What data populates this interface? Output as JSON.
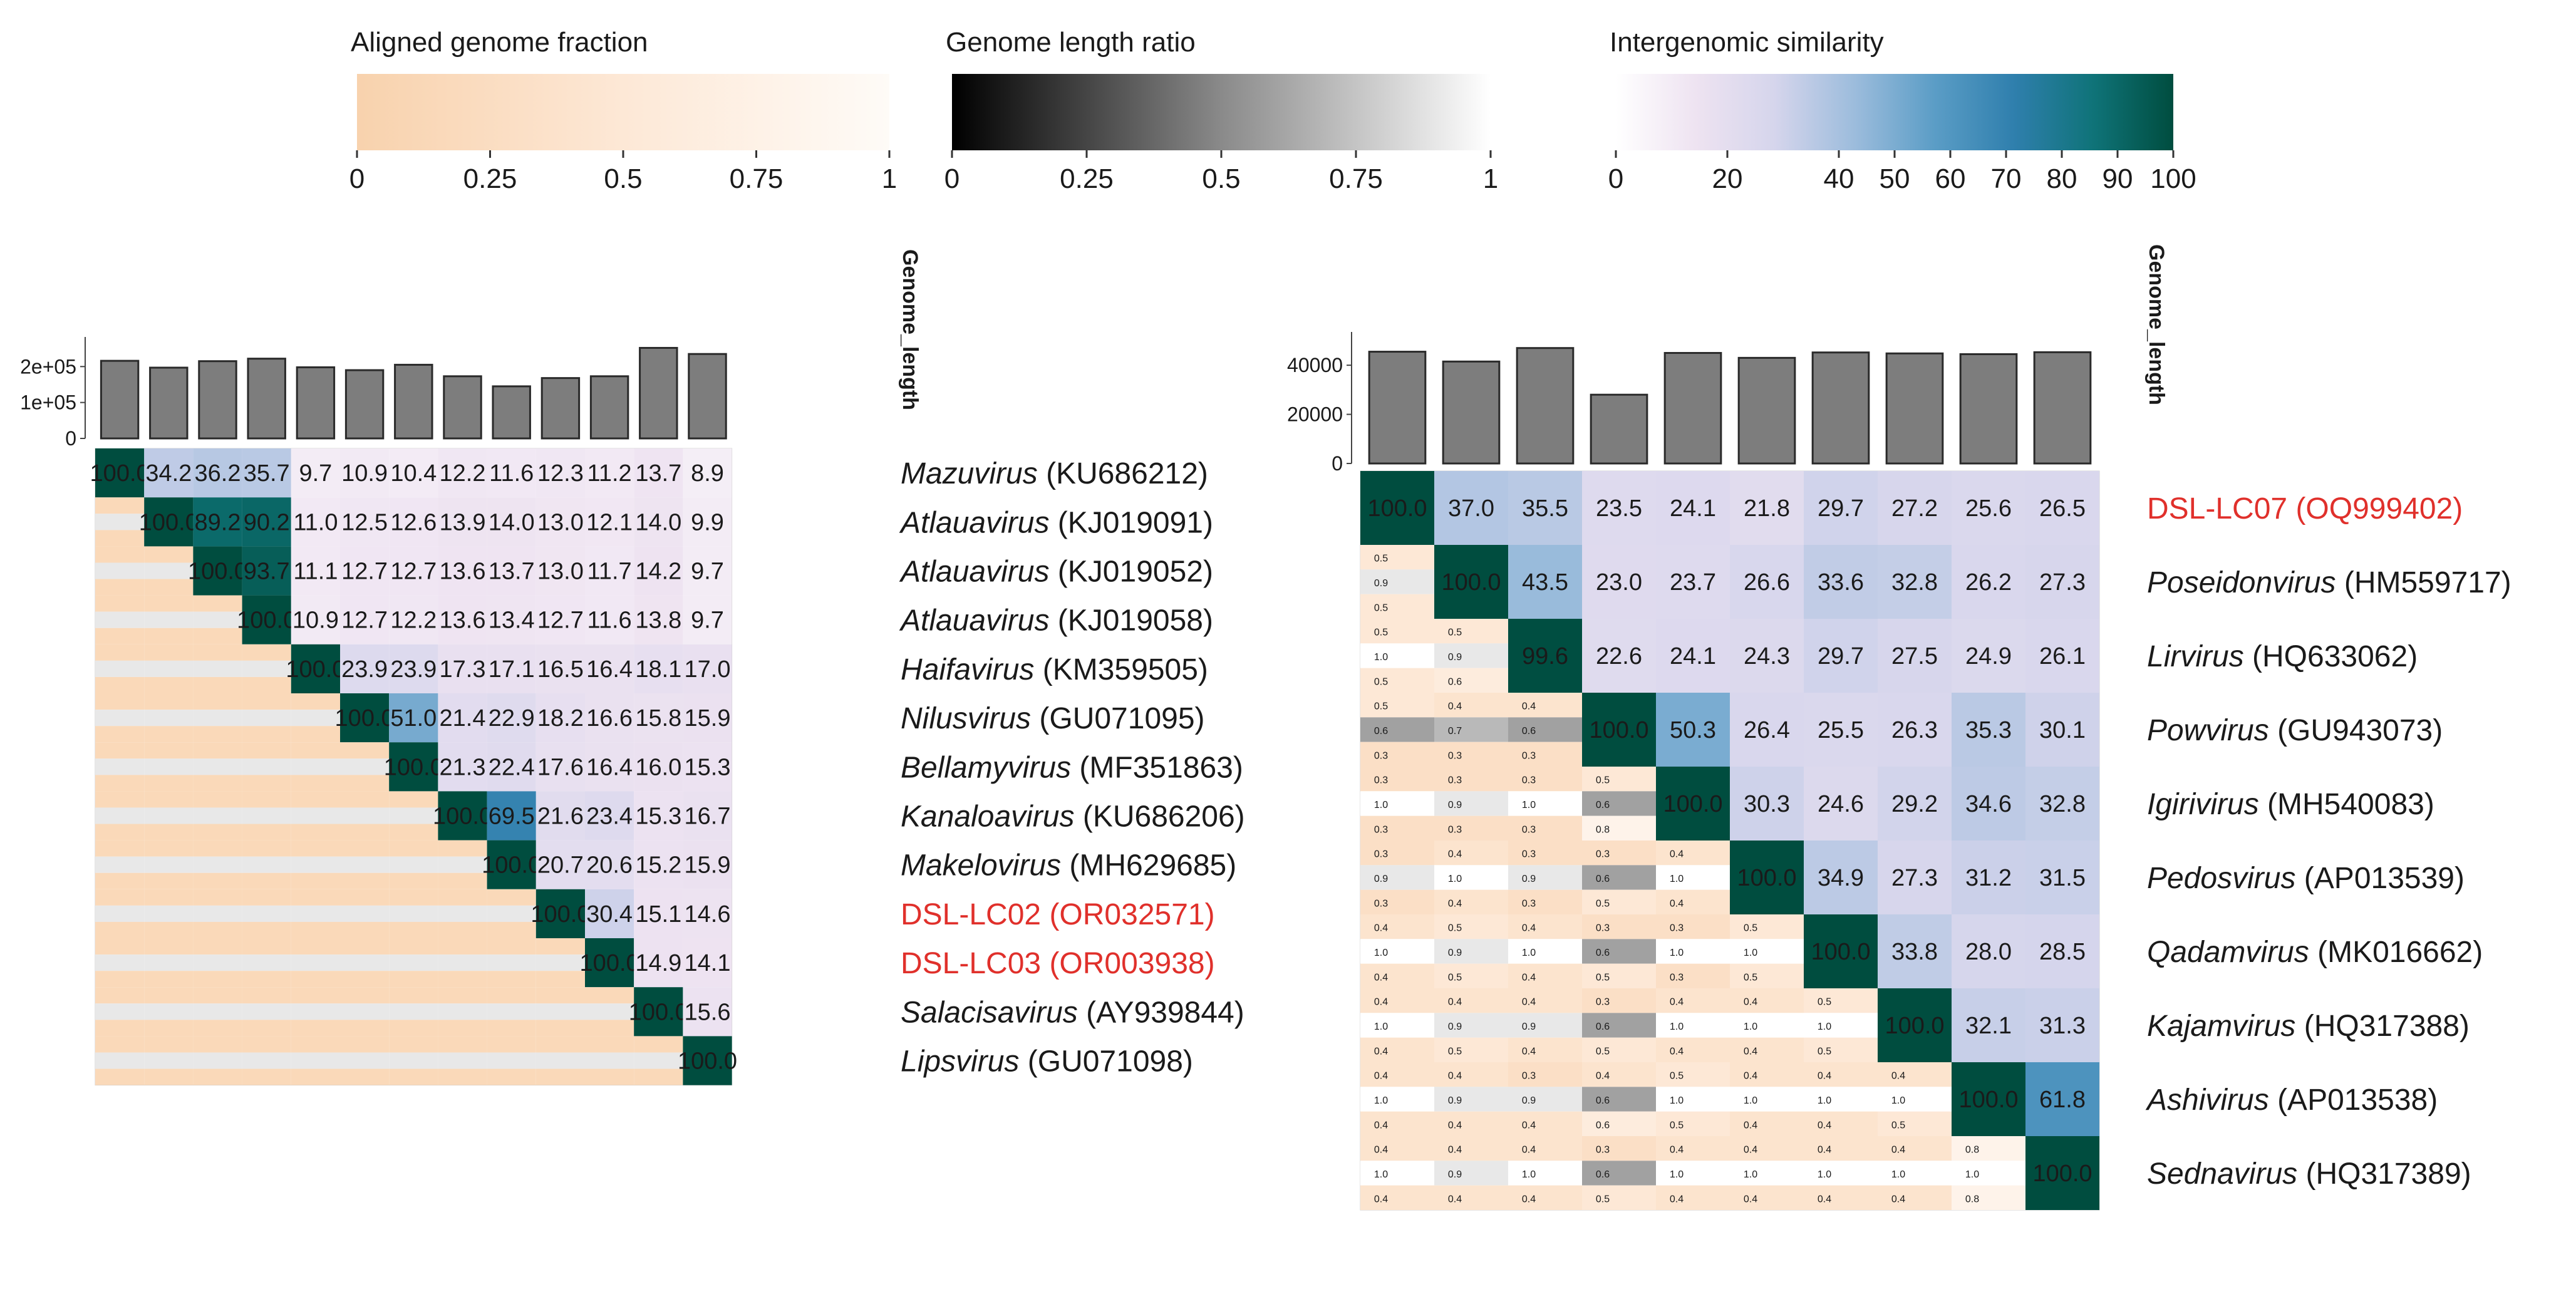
{
  "legends": [
    {
      "title": "Aligned genome fraction",
      "ticks": [
        "0",
        "0.25",
        "0.5",
        "0.75",
        "1"
      ],
      "tick_values": [
        0,
        0.25,
        0.5,
        0.75,
        1
      ],
      "colors": [
        "#f8d2ad",
        "#fde8d6",
        "#fefbf7"
      ]
    },
    {
      "title": "Genome length ratio",
      "ticks": [
        "0",
        "0.25",
        "0.5",
        "0.75",
        "1"
      ],
      "tick_values": [
        0,
        0.25,
        0.5,
        0.75,
        1
      ],
      "colors": [
        "#000000",
        "#8a8a8a",
        "#ffffff"
      ]
    },
    {
      "title": "Intergenomic similarity",
      "ticks": [
        "0",
        "20",
        "40",
        "50",
        "60",
        "70",
        "80",
        "90",
        "100"
      ],
      "tick_values": [
        0,
        20,
        40,
        50,
        60,
        70,
        80,
        90,
        100
      ],
      "colors": [
        "#ffffff",
        "#eee3f1",
        "#d5d5ec",
        "#9cbcdc",
        "#5b9dc6",
        "#2f7fad",
        "#0f7378",
        "#004d3f"
      ]
    }
  ],
  "panels": [
    {
      "axis_title": "Genome_length",
      "bar_axis": {
        "ticks": [
          "0",
          "1e+05",
          "2e+05"
        ],
        "tick_values": [
          0,
          100000,
          200000
        ],
        "max": 265000
      },
      "genomes": [
        {
          "genus": "Mazuvirus",
          "accession": "(KU686212)",
          "highlight": false,
          "length": 216000
        },
        {
          "genus": "Atlauavirus",
          "accession": "(KJ019091)",
          "highlight": false,
          "length": 197000
        },
        {
          "genus": "Atlauavirus",
          "accession": "(KJ019052)",
          "highlight": false,
          "length": 215000
        },
        {
          "genus": "Atlauavirus",
          "accession": "(KJ019058)",
          "highlight": false,
          "length": 222000
        },
        {
          "genus": "Haifavirus",
          "accession": "(KM359505)",
          "highlight": false,
          "length": 198000
        },
        {
          "genus": "Nilusvirus",
          "accession": "(GU071095)",
          "highlight": false,
          "length": 190000
        },
        {
          "genus": "Bellamyvirus",
          "accession": "(MF351863)",
          "highlight": false,
          "length": 205000
        },
        {
          "genus": "Kanaloavirus",
          "accession": "(KU686206)",
          "highlight": false,
          "length": 173000
        },
        {
          "genus": "Makelovirus",
          "accession": "(MH629685)",
          "highlight": false,
          "length": 145000
        },
        {
          "genus": "",
          "accession": "DSL-LC02 (OR032571)",
          "highlight": true,
          "length": 168000
        },
        {
          "genus": "",
          "accession": "DSL-LC03 (OR003938)",
          "highlight": true,
          "length": 173000
        },
        {
          "genus": "Salacisavirus",
          "accession": "(AY939844)",
          "highlight": false,
          "length": 252000
        },
        {
          "genus": "Lipsvirus",
          "accession": "(GU071098)",
          "highlight": false,
          "length": 235000
        }
      ],
      "similarity": [
        [
          100.0,
          34.2,
          36.2,
          35.7,
          9.7,
          10.9,
          10.4,
          12.2,
          11.6,
          12.3,
          11.2,
          13.7,
          8.9
        ],
        [
          null,
          100.0,
          89.2,
          90.2,
          11.0,
          12.5,
          12.6,
          13.9,
          14.0,
          13.0,
          12.1,
          14.0,
          9.9
        ],
        [
          null,
          null,
          100.0,
          93.7,
          11.1,
          12.7,
          12.7,
          13.6,
          13.7,
          13.0,
          11.7,
          14.2,
          9.7
        ],
        [
          null,
          null,
          null,
          100.0,
          10.9,
          12.7,
          12.2,
          13.6,
          13.4,
          12.7,
          11.6,
          13.8,
          9.7
        ],
        [
          null,
          null,
          null,
          null,
          100.0,
          23.9,
          23.9,
          17.3,
          17.1,
          16.5,
          16.4,
          18.1,
          17.0
        ],
        [
          null,
          null,
          null,
          null,
          null,
          100.0,
          51.0,
          21.4,
          22.9,
          18.2,
          16.6,
          15.8,
          15.9
        ],
        [
          null,
          null,
          null,
          null,
          null,
          null,
          100.0,
          21.3,
          22.4,
          17.6,
          16.4,
          16.0,
          15.3
        ],
        [
          null,
          null,
          null,
          null,
          null,
          null,
          null,
          100.0,
          69.5,
          21.6,
          23.4,
          15.3,
          16.7
        ],
        [
          null,
          null,
          null,
          null,
          null,
          null,
          null,
          null,
          100.0,
          20.7,
          20.6,
          15.2,
          15.9
        ],
        [
          null,
          null,
          null,
          null,
          null,
          null,
          null,
          null,
          null,
          100.0,
          30.4,
          15.1,
          14.6
        ],
        [
          null,
          null,
          null,
          null,
          null,
          null,
          null,
          null,
          null,
          null,
          100.0,
          14.9,
          14.1
        ],
        [
          null,
          null,
          null,
          null,
          null,
          null,
          null,
          null,
          null,
          null,
          null,
          100.0,
          15.6
        ],
        [
          null,
          null,
          null,
          null,
          null,
          null,
          null,
          null,
          null,
          null,
          null,
          null,
          100.0
        ]
      ],
      "lower_cells": [
        [],
        [],
        [],
        [],
        [],
        [],
        [],
        [],
        [],
        [],
        [],
        [],
        []
      ]
    },
    {
      "axis_title": "Genome_length",
      "bar_axis": {
        "ticks": [
          "0",
          "20000",
          "40000"
        ],
        "tick_values": [
          0,
          20000,
          40000
        ],
        "max": 51000
      },
      "genomes": [
        {
          "genus": "",
          "accession": "DSL-LC07 (OQ999402)",
          "highlight": true,
          "length": 45500
        },
        {
          "genus": "Poseidonvirus",
          "accession": "(HM559717)",
          "highlight": false,
          "length": 41500
        },
        {
          "genus": "Lirvirus",
          "accession": "(HQ633062)",
          "highlight": false,
          "length": 47000
        },
        {
          "genus": "Powvirus",
          "accession": "(GU943073)",
          "highlight": false,
          "length": 28000
        },
        {
          "genus": "Igirivirus",
          "accession": "(MH540083)",
          "highlight": false,
          "length": 45000
        },
        {
          "genus": "Pedosvirus",
          "accession": "(AP013539)",
          "highlight": false,
          "length": 43000
        },
        {
          "genus": "Qadamvirus",
          "accession": "(MK016662)",
          "highlight": false,
          "length": 45200
        },
        {
          "genus": "Kajamvirus",
          "accession": "(HQ317388)",
          "highlight": false,
          "length": 44800
        },
        {
          "genus": "Ashivirus",
          "accession": "(AP013538)",
          "highlight": false,
          "length": 44500
        },
        {
          "genus": "Sednavirus",
          "accession": "(HQ317389)",
          "highlight": false,
          "length": 45300
        }
      ],
      "similarity": [
        [
          100.0,
          37.0,
          35.5,
          23.5,
          24.1,
          21.8,
          29.7,
          27.2,
          25.6,
          26.5
        ],
        [
          null,
          100.0,
          43.5,
          23.0,
          23.7,
          26.6,
          33.6,
          32.8,
          26.2,
          27.3
        ],
        [
          null,
          null,
          99.6,
          22.6,
          24.1,
          24.3,
          29.7,
          27.5,
          24.9,
          26.1
        ],
        [
          null,
          null,
          null,
          100.0,
          50.3,
          26.4,
          25.5,
          26.3,
          35.3,
          30.1
        ],
        [
          null,
          null,
          null,
          null,
          100.0,
          30.3,
          24.6,
          29.2,
          34.6,
          32.8
        ],
        [
          null,
          null,
          null,
          null,
          null,
          100.0,
          34.9,
          27.3,
          31.2,
          31.5
        ],
        [
          null,
          null,
          null,
          null,
          null,
          null,
          100.0,
          33.8,
          28.0,
          28.5
        ],
        [
          null,
          null,
          null,
          null,
          null,
          null,
          null,
          100.0,
          32.1,
          31.3
        ],
        [
          null,
          null,
          null,
          null,
          null,
          null,
          null,
          null,
          100.0,
          61.8
        ],
        [
          null,
          null,
          null,
          null,
          null,
          null,
          null,
          null,
          null,
          100.0
        ]
      ],
      "lower_cells": [
        [],
        [
          [
            "0.5",
            "0.9",
            "0.5"
          ]
        ],
        [
          [
            "0.5",
            "1.0",
            "0.5"
          ],
          [
            "0.5",
            "0.9",
            "0.6"
          ]
        ],
        [
          [
            "0.5",
            "0.6",
            "0.3"
          ],
          [
            "0.4",
            "0.7",
            "0.3"
          ],
          [
            "0.4",
            "0.6",
            "0.3"
          ]
        ],
        [
          [
            "0.3",
            "1.0",
            "0.3"
          ],
          [
            "0.3",
            "0.9",
            "0.3"
          ],
          [
            "0.3",
            "1.0",
            "0.3"
          ],
          [
            "0.5",
            "0.6",
            "0.8"
          ]
        ],
        [
          [
            "0.3",
            "0.9",
            "0.3"
          ],
          [
            "0.4",
            "1.0",
            "0.4"
          ],
          [
            "0.3",
            "0.9",
            "0.3"
          ],
          [
            "0.3",
            "0.6",
            "0.5"
          ],
          [
            "0.4",
            "1.0",
            "0.4"
          ]
        ],
        [
          [
            "0.4",
            "1.0",
            "0.4"
          ],
          [
            "0.5",
            "0.9",
            "0.5"
          ],
          [
            "0.4",
            "1.0",
            "0.4"
          ],
          [
            "0.3",
            "0.6",
            "0.5"
          ],
          [
            "0.3",
            "1.0",
            "0.3"
          ],
          [
            "0.5",
            "1.0",
            "0.5"
          ]
        ],
        [
          [
            "0.4",
            "1.0",
            "0.4"
          ],
          [
            "0.4",
            "0.9",
            "0.5"
          ],
          [
            "0.4",
            "0.9",
            "0.4"
          ],
          [
            "0.3",
            "0.6",
            "0.5"
          ],
          [
            "0.4",
            "1.0",
            "0.4"
          ],
          [
            "0.4",
            "1.0",
            "0.4"
          ],
          [
            "0.5",
            "1.0",
            "0.5"
          ]
        ],
        [
          [
            "0.4",
            "1.0",
            "0.4"
          ],
          [
            "0.4",
            "0.9",
            "0.4"
          ],
          [
            "0.3",
            "0.9",
            "0.4"
          ],
          [
            "0.4",
            "0.6",
            "0.6"
          ],
          [
            "0.5",
            "1.0",
            "0.5"
          ],
          [
            "0.4",
            "1.0",
            "0.4"
          ],
          [
            "0.4",
            "1.0",
            "0.4"
          ],
          [
            "0.4",
            "1.0",
            "0.5"
          ]
        ],
        [
          [
            "0.4",
            "1.0",
            "0.4"
          ],
          [
            "0.4",
            "0.9",
            "0.4"
          ],
          [
            "0.4",
            "1.0",
            "0.4"
          ],
          [
            "0.3",
            "0.6",
            "0.5"
          ],
          [
            "0.4",
            "1.0",
            "0.4"
          ],
          [
            "0.4",
            "1.0",
            "0.4"
          ],
          [
            "0.4",
            "1.0",
            "0.4"
          ],
          [
            "0.4",
            "1.0",
            "0.4"
          ],
          [
            "0.8",
            "1.0",
            "0.8"
          ]
        ]
      ]
    }
  ],
  "chart_data": {
    "type": "heatmap",
    "title": "",
    "description_color_scales": [
      "Aligned genome fraction",
      "Genome length ratio",
      "Intergenomic similarity"
    ],
    "xlabel": "",
    "ylabel": "Genome_length",
    "panels": [
      {
        "genomes": [
          "Mazuvirus (KU686212)",
          "Atlauavirus (KJ019091)",
          "Atlauavirus (KJ019052)",
          "Atlauavirus (KJ019058)",
          "Haifavirus (KM359505)",
          "Nilusvirus (GU071095)",
          "Bellamyvirus (MF351863)",
          "Kanaloavirus (KU686206)",
          "Makelovirus (MH629685)",
          "DSL-LC02 (OR032571)",
          "DSL-LC03 (OR003938)",
          "Salacisavirus (AY939844)",
          "Lipsvirus (GU071098)"
        ],
        "bar_axis_ylim": [
          0,
          265000
        ]
      },
      {
        "genomes": [
          "DSL-LC07 (OQ999402)",
          "Poseidonvirus (HM559717)",
          "Lirvirus (HQ633062)",
          "Powvirus (GU943073)",
          "Igirivirus (MH540083)",
          "Pedosvirus (AP013539)",
          "Qadamvirus (MK016662)",
          "Kajamvirus (HQ317388)",
          "Ashivirus (AP013538)",
          "Sednavirus (HQ317389)"
        ],
        "bar_axis_ylim": [
          0,
          51000
        ]
      }
    ]
  }
}
